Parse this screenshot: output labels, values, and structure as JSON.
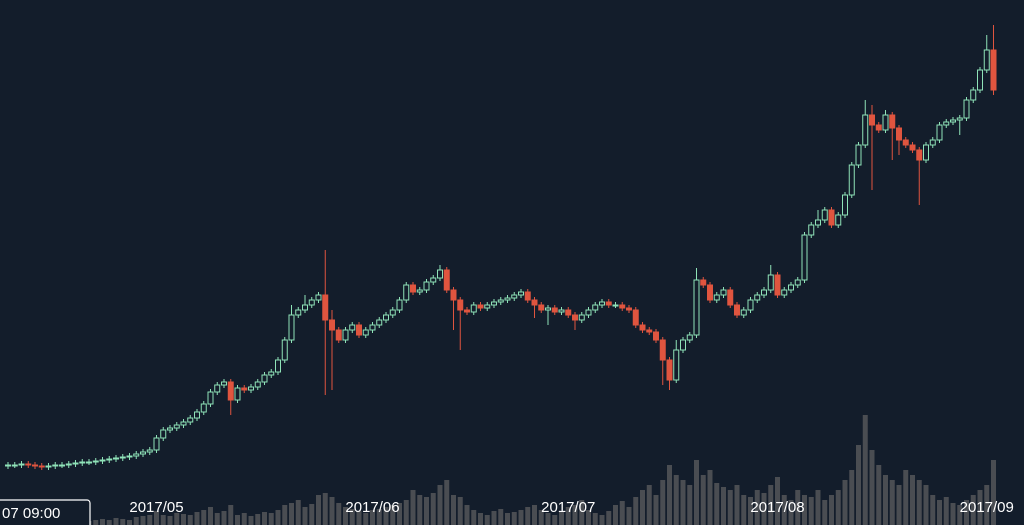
{
  "chart_data": {
    "type": "candlestick",
    "cursor_label": "07 09:00",
    "categories": [
      null,
      null,
      null,
      null,
      null,
      null,
      null,
      null,
      null,
      null,
      null,
      null,
      null,
      null,
      null,
      null,
      null,
      null,
      null,
      null,
      null,
      null,
      "2017/05",
      null,
      null,
      null,
      null,
      null,
      null,
      null,
      null,
      null,
      null,
      null,
      null,
      null,
      null,
      null,
      null,
      null,
      null,
      null,
      null,
      null,
      null,
      null,
      null,
      null,
      null,
      null,
      null,
      null,
      null,
      null,
      "2017/06",
      null,
      null,
      null,
      null,
      null,
      null,
      null,
      null,
      null,
      null,
      null,
      null,
      null,
      null,
      null,
      null,
      null,
      null,
      null,
      null,
      null,
      null,
      null,
      null,
      null,
      null,
      null,
      null,
      "2017/07",
      null,
      null,
      null,
      null,
      null,
      null,
      null,
      null,
      null,
      null,
      null,
      null,
      null,
      null,
      null,
      null,
      null,
      null,
      null,
      null,
      null,
      null,
      null,
      null,
      null,
      null,
      null,
      null,
      null,
      null,
      "2017/08",
      null,
      null,
      null,
      null,
      null,
      null,
      null,
      null,
      null,
      null,
      null,
      null,
      null,
      null,
      null,
      null,
      null,
      null,
      null,
      null,
      null,
      null,
      null,
      null,
      null,
      null,
      null,
      null,
      null,
      null,
      "2017/09",
      null
    ],
    "open": [
      34,
      35,
      35,
      36,
      35,
      34,
      33,
      34,
      35,
      35,
      36,
      37,
      38,
      38,
      39,
      40,
      41,
      42,
      43,
      44,
      46,
      48,
      50,
      62,
      70,
      72,
      75,
      78,
      82,
      88,
      96,
      108,
      115,
      118,
      100,
      112,
      110,
      113,
      118,
      125,
      128,
      140,
      160,
      185,
      190,
      195,
      200,
      205,
      180,
      170,
      160,
      170,
      175,
      165,
      170,
      175,
      180,
      185,
      190,
      200,
      215,
      208,
      210,
      218,
      222,
      230,
      210,
      200,
      190,
      188,
      195,
      192,
      195,
      198,
      200,
      202,
      205,
      208,
      200,
      195,
      190,
      192,
      188,
      190,
      185,
      180,
      185,
      190,
      195,
      198,
      195,
      195,
      192,
      190,
      175,
      170,
      168,
      160,
      140,
      120,
      150,
      160,
      165,
      220,
      215,
      200,
      205,
      210,
      195,
      185,
      190,
      200,
      205,
      210,
      225,
      205,
      210,
      215,
      220,
      265,
      275,
      280,
      290,
      275,
      285,
      305,
      335,
      355,
      385,
      375,
      370,
      385,
      372,
      360,
      355,
      350,
      340,
      355,
      360,
      375,
      378,
      380,
      382,
      400,
      410,
      430,
      450
    ],
    "high": [
      38,
      38,
      39,
      39,
      38,
      37,
      37,
      38,
      38,
      39,
      40,
      41,
      41,
      42,
      43,
      44,
      45,
      46,
      47,
      49,
      51,
      53,
      65,
      73,
      75,
      78,
      81,
      85,
      91,
      99,
      111,
      118,
      121,
      121,
      115,
      115,
      116,
      121,
      128,
      131,
      143,
      163,
      195,
      193,
      205,
      203,
      208,
      250,
      190,
      173,
      173,
      178,
      178,
      173,
      178,
      183,
      188,
      193,
      203,
      218,
      218,
      213,
      221,
      225,
      235,
      233,
      213,
      203,
      193,
      198,
      198,
      198,
      201,
      203,
      205,
      208,
      211,
      211,
      203,
      198,
      195,
      195,
      193,
      193,
      188,
      188,
      193,
      198,
      201,
      201,
      198,
      198,
      195,
      193,
      178,
      173,
      171,
      163,
      143,
      160,
      163,
      168,
      232,
      223,
      218,
      208,
      213,
      213,
      198,
      193,
      203,
      208,
      213,
      235,
      228,
      213,
      218,
      223,
      268,
      278,
      290,
      293,
      293,
      288,
      308,
      338,
      358,
      400,
      395,
      378,
      390,
      388,
      375,
      363,
      358,
      353,
      358,
      363,
      378,
      381,
      383,
      385,
      403,
      413,
      433,
      465,
      475
    ],
    "low": [
      31,
      32,
      32,
      32,
      31,
      30,
      30,
      31,
      32,
      32,
      33,
      34,
      35,
      35,
      36,
      37,
      38,
      39,
      40,
      41,
      43,
      45,
      47,
      59,
      67,
      69,
      72,
      75,
      79,
      85,
      93,
      105,
      112,
      85,
      97,
      107,
      107,
      110,
      115,
      122,
      125,
      137,
      157,
      182,
      187,
      192,
      197,
      105,
      110,
      157,
      157,
      167,
      162,
      162,
      167,
      172,
      177,
      182,
      187,
      197,
      205,
      205,
      207,
      215,
      219,
      207,
      170,
      150,
      185,
      185,
      189,
      189,
      192,
      195,
      197,
      199,
      202,
      197,
      182,
      187,
      175,
      185,
      185,
      182,
      170,
      177,
      182,
      187,
      192,
      192,
      192,
      189,
      187,
      172,
      167,
      165,
      157,
      115,
      110,
      117,
      147,
      157,
      162,
      212,
      197,
      197,
      202,
      192,
      182,
      182,
      187,
      197,
      202,
      207,
      202,
      202,
      207,
      212,
      217,
      262,
      272,
      277,
      272,
      272,
      282,
      302,
      332,
      352,
      310,
      367,
      367,
      340,
      345,
      352,
      347,
      295,
      337,
      352,
      357,
      372,
      375,
      365,
      379,
      397,
      407,
      427,
      405
    ],
    "close": [
      35,
      35,
      36,
      35,
      34,
      33,
      34,
      35,
      35,
      36,
      37,
      38,
      38,
      39,
      40,
      41,
      42,
      43,
      44,
      46,
      48,
      50,
      62,
      70,
      72,
      75,
      78,
      82,
      88,
      96,
      108,
      115,
      118,
      100,
      112,
      110,
      113,
      118,
      125,
      128,
      140,
      160,
      185,
      190,
      195,
      200,
      205,
      180,
      170,
      160,
      170,
      175,
      165,
      170,
      175,
      180,
      185,
      190,
      200,
      215,
      208,
      210,
      218,
      222,
      230,
      210,
      200,
      190,
      188,
      195,
      192,
      195,
      198,
      200,
      202,
      205,
      208,
      200,
      195,
      190,
      192,
      188,
      190,
      185,
      180,
      185,
      190,
      195,
      198,
      195,
      195,
      192,
      190,
      175,
      170,
      168,
      160,
      140,
      120,
      150,
      160,
      165,
      220,
      215,
      200,
      205,
      210,
      195,
      185,
      190,
      200,
      205,
      210,
      225,
      205,
      210,
      215,
      220,
      265,
      275,
      280,
      290,
      275,
      285,
      305,
      335,
      355,
      385,
      375,
      370,
      385,
      372,
      360,
      355,
      350,
      340,
      355,
      360,
      375,
      378,
      380,
      382,
      400,
      410,
      430,
      450,
      410
    ],
    "volume": [
      3,
      4,
      3,
      4,
      5,
      3,
      4,
      5,
      4,
      3,
      5,
      6,
      4,
      5,
      6,
      5,
      7,
      6,
      5,
      8,
      9,
      10,
      14,
      10,
      9,
      12,
      11,
      10,
      13,
      15,
      18,
      12,
      14,
      20,
      10,
      12,
      9,
      11,
      13,
      12,
      15,
      20,
      22,
      25,
      18,
      21,
      30,
      32,
      28,
      22,
      18,
      16,
      14,
      12,
      15,
      16,
      18,
      20,
      22,
      25,
      35,
      30,
      28,
      32,
      40,
      45,
      30,
      28,
      20,
      15,
      12,
      10,
      14,
      16,
      12,
      13,
      15,
      18,
      20,
      15,
      12,
      10,
      13,
      18,
      20,
      25,
      15,
      12,
      10,
      14,
      20,
      24,
      18,
      28,
      35,
      40,
      30,
      45,
      60,
      50,
      45,
      40,
      65,
      50,
      55,
      42,
      38,
      35,
      40,
      30,
      28,
      35,
      32,
      40,
      48,
      30,
      25,
      35,
      30,
      28,
      35,
      25,
      30,
      35,
      45,
      55,
      80,
      110,
      75,
      60,
      50,
      45,
      40,
      55,
      50,
      45,
      40,
      30,
      25,
      28,
      22,
      20,
      25,
      30,
      35,
      40,
      65
    ],
    "ylim": [
      0,
      500
    ],
    "y2lim": [
      0,
      120
    ],
    "up_color": "#8fe3b8",
    "down_color": "#e0553f",
    "volume_color": "#4a4d52"
  }
}
